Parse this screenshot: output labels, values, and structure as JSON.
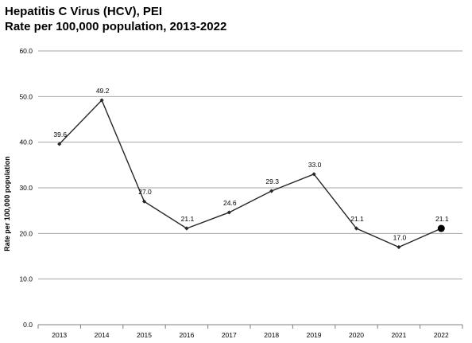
{
  "chart_data": {
    "type": "line",
    "title": "Hepatitis C Virus (HCV), PEI",
    "subtitle": "Rate per 100,000 population, 2013-2022",
    "xlabel": "",
    "ylabel": "Rate per 100,000 population",
    "categories": [
      "2013",
      "2014",
      "2015",
      "2016",
      "2017",
      "2018",
      "2019",
      "2020",
      "2021",
      "2022"
    ],
    "series": [
      {
        "values": [
          39.6,
          49.2,
          27.0,
          21.1,
          24.6,
          29.3,
          33.0,
          21.1,
          17.0,
          21.1
        ],
        "labels": [
          "39.6",
          "49.2",
          "27.0",
          "21.1",
          "24.6",
          "29.3",
          "33.0",
          "21.1",
          "17.0",
          "21.1"
        ],
        "color": "#262626"
      }
    ],
    "ylim": [
      0,
      60
    ],
    "yticks": [
      "0.0",
      "10.0",
      "20.0",
      "30.0",
      "40.0",
      "50.0",
      "60.0"
    ],
    "grid": true,
    "legend": "none",
    "highlight_last_point": true
  }
}
